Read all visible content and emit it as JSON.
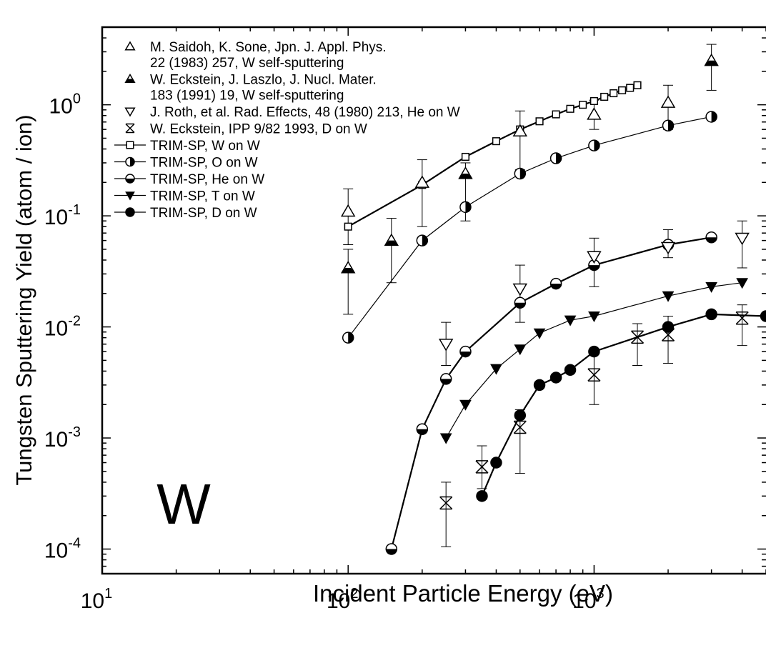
{
  "chart_data": {
    "type": "scatter",
    "title": "",
    "annotation": "W",
    "xlabel": "Incident Particle Energy (eV)",
    "ylabel": "Tungsten Sputtering Yield (atom / ion)",
    "xscale": "log",
    "yscale": "log",
    "xlim": [
      10,
      5000
    ],
    "ylim": [
      6e-05,
      5
    ],
    "x_ticks": [
      {
        "value": 10,
        "base": "10",
        "exp": "1"
      },
      {
        "value": 100,
        "base": "10",
        "exp": "2"
      },
      {
        "value": 1000,
        "base": "10",
        "exp": "3"
      }
    ],
    "y_ticks": [
      {
        "value": 0.0001,
        "base": "10",
        "exp": "-4"
      },
      {
        "value": 0.001,
        "base": "10",
        "exp": "-3"
      },
      {
        "value": 0.01,
        "base": "10",
        "exp": "-2"
      },
      {
        "value": 0.1,
        "base": "10",
        "exp": "-1"
      },
      {
        "value": 1,
        "base": "10",
        "exp": "0"
      }
    ],
    "legend_position": "top-left",
    "legend": [
      {
        "lines": [
          "M. Saidoh, K. Sone, Jpn. J. Appl. Phys.",
          "22 (1983) 257, W self-sputtering"
        ],
        "marker": "triangle-open",
        "line": false
      },
      {
        "lines": [
          "W. Eckstein, J. Laszlo, J. Nucl. Mater.",
          "183 (1991) 19, W self-sputtering"
        ],
        "marker": "triangle-half",
        "line": false
      },
      {
        "lines": [
          "J. Roth, et al. Rad. Effects, 48 (1980) 213, He on W"
        ],
        "marker": "triangle-down-open",
        "line": false
      },
      {
        "lines": [
          "W. Eckstein, IPP 9/82 1993, D on W"
        ],
        "marker": "box-x",
        "line": false
      },
      {
        "lines": [
          "TRIM-SP, W on W"
        ],
        "marker": "square-open",
        "line": true
      },
      {
        "lines": [
          "TRIM-SP, O on W"
        ],
        "marker": "circle-half-right",
        "line": true
      },
      {
        "lines": [
          "TRIM-SP, He on W"
        ],
        "marker": "circle-half-bottom",
        "line": true
      },
      {
        "lines": [
          "TRIM-SP, T on W"
        ],
        "marker": "triangle-down-filled",
        "line": true
      },
      {
        "lines": [
          "TRIM-SP, D on W"
        ],
        "marker": "circle-filled",
        "line": true
      }
    ],
    "series": [
      {
        "name": "TRIM-SP, W on W",
        "marker": "square-open",
        "line": true,
        "lineWidth": 2.2,
        "points": [
          [
            100,
            0.08
          ],
          [
            200,
            0.19
          ],
          [
            300,
            0.34
          ],
          [
            400,
            0.47
          ],
          [
            500,
            0.6
          ],
          [
            600,
            0.71
          ],
          [
            700,
            0.82
          ],
          [
            800,
            0.92
          ],
          [
            900,
            1.0
          ],
          [
            1000,
            1.08
          ],
          [
            1100,
            1.18
          ],
          [
            1200,
            1.27
          ],
          [
            1300,
            1.35
          ],
          [
            1400,
            1.42
          ],
          [
            1500,
            1.5
          ]
        ]
      },
      {
        "name": "TRIM-SP, O on W",
        "marker": "circle-half-right",
        "line": true,
        "lineWidth": 1.2,
        "points": [
          [
            100,
            0.008
          ],
          [
            200,
            0.06
          ],
          [
            300,
            0.12
          ],
          [
            500,
            0.24
          ],
          [
            700,
            0.33
          ],
          [
            1000,
            0.43
          ],
          [
            2000,
            0.65
          ],
          [
            3000,
            0.78
          ]
        ]
      },
      {
        "name": "TRIM-SP, He on W",
        "marker": "circle-half-bottom",
        "line": true,
        "lineWidth": 2.2,
        "points": [
          [
            150,
            0.0001
          ],
          [
            200,
            0.0012
          ],
          [
            250,
            0.0034
          ],
          [
            300,
            0.006
          ],
          [
            500,
            0.0165
          ],
          [
            700,
            0.0245
          ],
          [
            1000,
            0.036
          ],
          [
            2000,
            0.055
          ],
          [
            3000,
            0.064
          ]
        ]
      },
      {
        "name": "TRIM-SP, T on W",
        "marker": "triangle-down-filled",
        "line": true,
        "lineWidth": 1.2,
        "points": [
          [
            250,
            0.001
          ],
          [
            300,
            0.002
          ],
          [
            400,
            0.0042
          ],
          [
            500,
            0.0063
          ],
          [
            600,
            0.0088
          ],
          [
            800,
            0.0115
          ],
          [
            1000,
            0.0125
          ],
          [
            2000,
            0.019
          ],
          [
            3000,
            0.023
          ],
          [
            4000,
            0.025
          ]
        ]
      },
      {
        "name": "TRIM-SP, D on W",
        "marker": "circle-filled",
        "line": true,
        "lineWidth": 2.2,
        "points": [
          [
            350,
            0.0003
          ],
          [
            400,
            0.0006
          ],
          [
            500,
            0.0016
          ],
          [
            600,
            0.003
          ],
          [
            700,
            0.0035
          ],
          [
            800,
            0.0041
          ],
          [
            1000,
            0.006
          ],
          [
            2000,
            0.01
          ],
          [
            3000,
            0.013
          ],
          [
            5000,
            0.0125
          ]
        ]
      },
      {
        "name": "M. Saidoh, K. Sone, Jpn. J. Appl. Phys. 22 (1983) 257, W self-sputtering",
        "marker": "triangle-open",
        "line": false,
        "points": [
          [
            100,
            0.11
          ],
          [
            200,
            0.2
          ],
          [
            500,
            0.58
          ],
          [
            1000,
            0.82
          ],
          [
            2000,
            1.05
          ]
        ],
        "errors": [
          [
            0.055,
            0.175
          ],
          [
            0.08,
            0.32
          ],
          [
            0.26,
            0.88
          ],
          [
            0.6,
            1.1
          ],
          [
            0.6,
            1.5
          ]
        ]
      },
      {
        "name": "W. Eckstein, J. Laszlo, J. Nucl. Mater. 183 (1991) 19, W self-sputtering",
        "marker": "triangle-half",
        "line": false,
        "points": [
          [
            100,
            0.034
          ],
          [
            150,
            0.06
          ],
          [
            300,
            0.24
          ],
          [
            3000,
            2.5
          ]
        ],
        "errors": [
          [
            0.013,
            0.05
          ],
          [
            0.025,
            0.095
          ],
          [
            0.09,
            0.3
          ],
          [
            1.35,
            3.5
          ]
        ]
      },
      {
        "name": "J. Roth, et al. Rad. Effects, 48 (1980) 213, He on W",
        "marker": "triangle-down-open",
        "line": false,
        "points": [
          [
            250,
            0.007
          ],
          [
            500,
            0.022
          ],
          [
            1000,
            0.043
          ],
          [
            2000,
            0.052
          ],
          [
            4000,
            0.063
          ]
        ],
        "errors": [
          [
            0.0045,
            0.011
          ],
          [
            0.011,
            0.036
          ],
          [
            0.023,
            0.063
          ],
          [
            0.042,
            0.075
          ],
          [
            0.034,
            0.09
          ]
        ]
      },
      {
        "name": "W. Eckstein, IPP 9/82 1993, D on W",
        "marker": "box-x",
        "line": false,
        "points": [
          [
            250,
            0.00026
          ],
          [
            350,
            0.00055
          ],
          [
            500,
            0.00125
          ],
          [
            1000,
            0.0037
          ],
          [
            1500,
            0.0081
          ],
          [
            2000,
            0.0085
          ],
          [
            4000,
            0.012
          ]
        ],
        "errors": [
          [
            0.000105,
            0.0004
          ],
          [
            0.00035,
            0.00085
          ],
          [
            0.00048,
            0.0018
          ],
          [
            0.002,
            0.0057
          ],
          [
            0.0045,
            0.0107
          ],
          [
            0.0047,
            0.0125
          ],
          [
            0.0068,
            0.0158
          ]
        ]
      }
    ]
  }
}
